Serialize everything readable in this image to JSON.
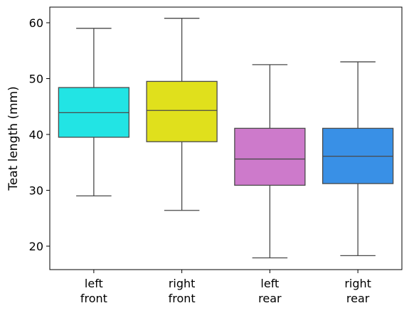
{
  "chart_data": {
    "type": "box",
    "ylabel": "Teat length (mm)",
    "xlabel": "",
    "title": "",
    "ylim": [
      15.8,
      62.8
    ],
    "yticks": [
      20,
      30,
      40,
      50,
      60
    ],
    "grid": false,
    "categories": [
      {
        "lines": [
          "left",
          "front"
        ],
        "color": "#22e4e4"
      },
      {
        "lines": [
          "right",
          "front"
        ],
        "color": "#e0e01c"
      },
      {
        "lines": [
          "left",
          "rear"
        ],
        "color": "#cd7acb"
      },
      {
        "lines": [
          "right",
          "rear"
        ],
        "color": "#3990e6"
      }
    ],
    "boxes": [
      {
        "whisker_low": 29.0,
        "q1": 39.5,
        "median": 43.9,
        "q3": 48.4,
        "whisker_high": 59.0
      },
      {
        "whisker_low": 26.4,
        "q1": 38.7,
        "median": 44.3,
        "q3": 49.5,
        "whisker_high": 60.8
      },
      {
        "whisker_low": 17.9,
        "q1": 30.9,
        "median": 35.6,
        "q3": 41.1,
        "whisker_high": 52.5
      },
      {
        "whisker_low": 18.3,
        "q1": 31.2,
        "median": 36.1,
        "q3": 41.1,
        "whisker_high": 53.0
      }
    ]
  }
}
